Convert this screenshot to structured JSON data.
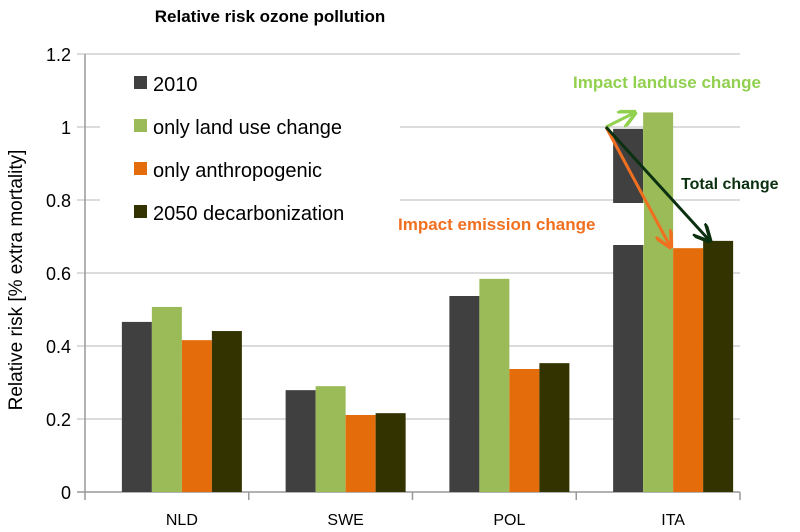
{
  "chart_data": {
    "type": "bar",
    "title": "Relative risk ozone pollution",
    "xlabel": "",
    "ylabel": "Relative risk [% extra mortality]",
    "ylim": [
      0,
      1.2
    ],
    "yticks": [
      "0",
      "0.2",
      "0.4",
      "0.6",
      "0.8",
      "1",
      "1.2"
    ],
    "grid": true,
    "legend_position": "top-left",
    "categories": [
      "NLD",
      "SWE",
      "POL",
      "ITA"
    ],
    "series": [
      {
        "name": "2010",
        "color": "#404040",
        "values": [
          0.466,
          0.279,
          0.537,
          0.995
        ]
      },
      {
        "name": "only land use change",
        "color": "#9bbb59",
        "values": [
          0.507,
          0.29,
          0.584,
          1.04
        ]
      },
      {
        "name": "only anthropogenic",
        "color": "#e46c0a",
        "values": [
          0.416,
          0.211,
          0.337,
          0.668
        ]
      },
      {
        "name": "2050 decarbonization",
        "color": "#333300",
        "values": [
          0.441,
          0.216,
          0.353,
          0.688
        ]
      }
    ],
    "annotations": [
      {
        "text": "Impact landuse change",
        "color": "#92d050"
      },
      {
        "text": "Impact emission change",
        "color": "#f07020"
      },
      {
        "text": "Total change",
        "color": "#0a3010"
      }
    ]
  }
}
